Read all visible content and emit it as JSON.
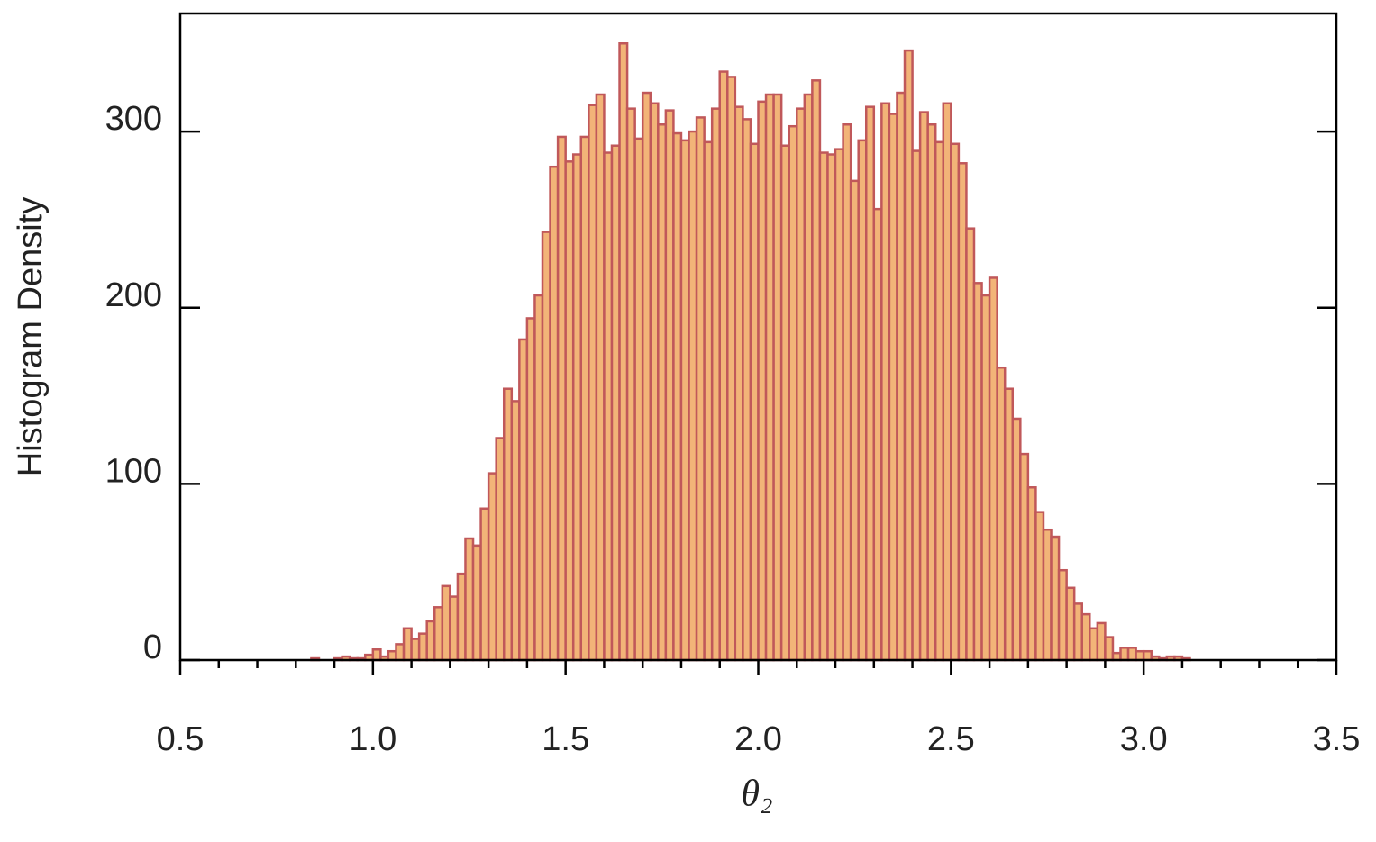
{
  "chart_data": {
    "type": "histogram",
    "xlabel": "θ₂",
    "ylabel": "Histogram Density",
    "bins": [
      0.84,
      0.86,
      0.88,
      0.9,
      0.92,
      0.94,
      0.96,
      0.98,
      1.0,
      1.02,
      1.04,
      1.06,
      1.08,
      1.1,
      1.12,
      1.14,
      1.16,
      1.18,
      1.2,
      1.22,
      1.24,
      1.26,
      1.28,
      1.3,
      1.32,
      1.34,
      1.36,
      1.38,
      1.4,
      1.42,
      1.44,
      1.46,
      1.48,
      1.5,
      1.52,
      1.54,
      1.56,
      1.58,
      1.6,
      1.62,
      1.64,
      1.66,
      1.68,
      1.7,
      1.72,
      1.74,
      1.76,
      1.78,
      1.8,
      1.82,
      1.84,
      1.86,
      1.88,
      1.9,
      1.92,
      1.94,
      1.96,
      1.98,
      2.0,
      2.02,
      2.04,
      2.06,
      2.08,
      2.1,
      2.12,
      2.14,
      2.16,
      2.18,
      2.2,
      2.22,
      2.24,
      2.26,
      2.28,
      2.3,
      2.32,
      2.34,
      2.36,
      2.38,
      2.4,
      2.42,
      2.44,
      2.46,
      2.48,
      2.5,
      2.52,
      2.54,
      2.56,
      2.58,
      2.6,
      2.62,
      2.64,
      2.66,
      2.68,
      2.7,
      2.72,
      2.74,
      2.76,
      2.78,
      2.8,
      2.82,
      2.84,
      2.86,
      2.88,
      2.9,
      2.92,
      2.94,
      2.96,
      2.98,
      3.0,
      3.02,
      3.04,
      3.06,
      3.08,
      3.1,
      3.12
    ],
    "values": [
      1,
      0,
      0,
      1,
      2,
      1,
      1,
      3,
      6,
      2,
      5,
      9,
      18,
      12,
      15,
      22,
      30,
      42,
      36,
      49,
      69,
      65,
      86,
      106,
      126,
      154,
      147,
      182,
      194,
      207,
      243,
      280,
      297,
      283,
      287,
      297,
      315,
      321,
      288,
      292,
      350,
      313,
      296,
      322,
      316,
      304,
      312,
      299,
      295,
      300,
      308,
      294,
      313,
      334,
      331,
      314,
      307,
      293,
      317,
      321,
      321,
      292,
      303,
      313,
      321,
      329,
      288,
      287,
      290,
      304,
      272,
      295,
      314,
      256,
      316,
      310,
      322,
      346,
      289,
      311,
      304,
      294,
      316,
      293,
      282,
      245,
      214,
      207,
      217,
      166,
      154,
      137,
      117,
      98,
      84,
      74,
      70,
      51,
      41,
      32,
      26,
      18,
      21,
      13,
      4,
      7,
      7,
      5,
      5,
      2,
      1,
      2,
      2,
      1
    ],
    "color": "#f2b478",
    "edgecolor": "#c0585a",
    "xlim": [
      0.5,
      3.5
    ],
    "xticks": [
      0.5,
      {
        "value": 1,
        "label": "1.0"
      },
      1.5,
      {
        "value": 2,
        "label": "2.0"
      },
      2.5,
      {
        "value": 3,
        "label": "3.0"
      },
      3.5
    ],
    "xminorticks": [
      0.6,
      0.7,
      0.8,
      0.9,
      1.1,
      1.2,
      1.3,
      1.4,
      1.6,
      1.7,
      1.8,
      1.9,
      2.1,
      2.2,
      2.3,
      2.4,
      2.6,
      2.7,
      2.8,
      2.9,
      3.1,
      3.2,
      3.3,
      3.4
    ],
    "ylim": [
      0,
      367
    ],
    "yticks": [
      0,
      100,
      200,
      300
    ]
  }
}
